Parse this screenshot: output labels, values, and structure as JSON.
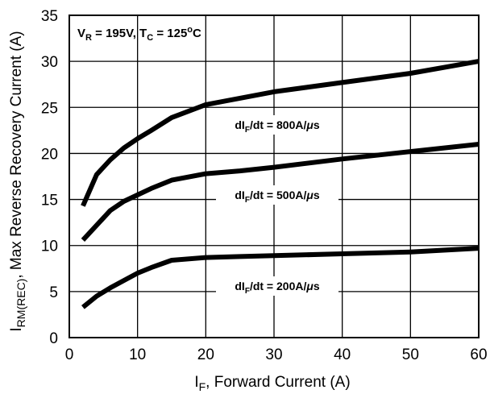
{
  "chart_data": {
    "type": "line",
    "xlabel_main": "I",
    "xlabel_sub": "F",
    "xlabel_rest": ", Forward Current (A)",
    "ylabel_main": "I",
    "ylabel_sub": "RM(REC)",
    "ylabel_rest": ", Max Reverse Recovery Current (A)",
    "xlim": [
      0,
      60
    ],
    "ylim": [
      0,
      35
    ],
    "x_ticks": [
      0,
      10,
      20,
      30,
      40,
      50,
      60
    ],
    "y_ticks": [
      0,
      5,
      10,
      15,
      20,
      25,
      30,
      35
    ],
    "x_tick_labels": [
      "0",
      "10",
      "20",
      "30",
      "40",
      "50",
      "60"
    ],
    "y_tick_labels": [
      "0",
      "5",
      "10",
      "15",
      "20",
      "25",
      "30",
      "35"
    ],
    "grid": true,
    "condition": {
      "v_main": "V",
      "v_sub": "R",
      "v_rest": " = 195V, T",
      "t_sub": "C",
      "t_rest": " = 125",
      "t_sup": "o",
      "t_unit": "C"
    },
    "series": [
      {
        "label_main": "dI",
        "label_sub": "F",
        "label_rest": "/dt = 800A/",
        "label_mu": "μ",
        "label_unit": "s",
        "x": [
          2,
          4,
          6,
          8,
          10,
          12,
          15,
          20,
          25,
          30,
          40,
          50,
          60
        ],
        "y": [
          14.3,
          17.7,
          19.3,
          20.6,
          21.6,
          22.5,
          23.9,
          25.3,
          26.0,
          26.7,
          27.7,
          28.7,
          30.0
        ]
      },
      {
        "label_main": "dI",
        "label_sub": "F",
        "label_rest": "/dt = 500A/",
        "label_mu": "μ",
        "label_unit": "s",
        "x": [
          2,
          4,
          6,
          8,
          10,
          12,
          15,
          20,
          25,
          30,
          40,
          50,
          60
        ],
        "y": [
          10.6,
          12.2,
          13.8,
          14.8,
          15.5,
          16.2,
          17.1,
          17.8,
          18.1,
          18.5,
          19.4,
          20.2,
          21.0
        ]
      },
      {
        "label_main": "dI",
        "label_sub": "F",
        "label_rest": "/dt = 200A/",
        "label_mu": "μ",
        "label_unit": "s",
        "x": [
          2,
          4,
          6,
          8,
          10,
          12,
          15,
          20,
          25,
          30,
          40,
          50,
          60
        ],
        "y": [
          3.3,
          4.5,
          5.4,
          6.2,
          7.0,
          7.6,
          8.4,
          8.7,
          8.8,
          8.9,
          9.1,
          9.3,
          9.7
        ]
      }
    ]
  }
}
